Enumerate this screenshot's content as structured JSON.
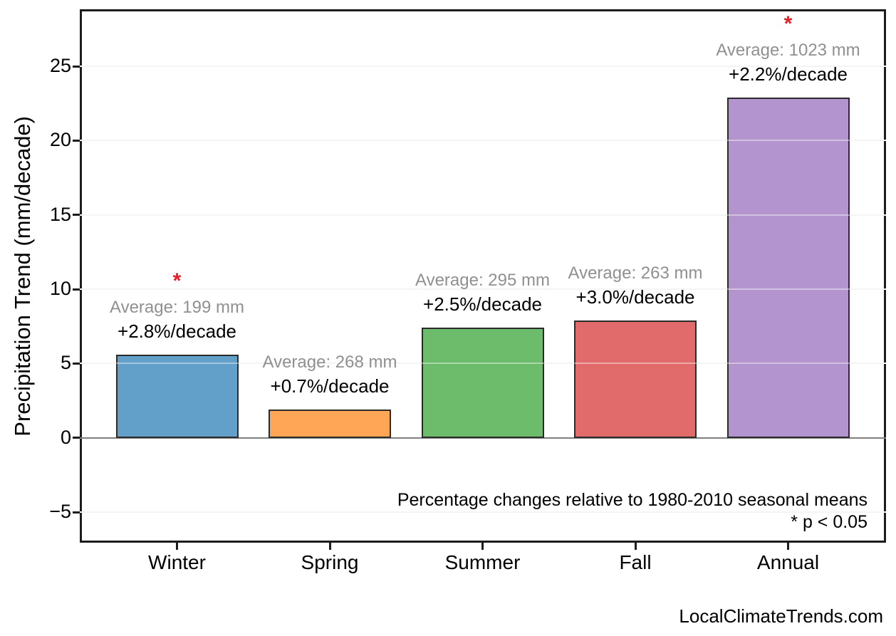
{
  "chart_data": {
    "type": "bar",
    "title": "",
    "xlabel": "",
    "ylabel": "Precipitation Trend (mm/decade)",
    "categories": [
      "Winter",
      "Spring",
      "Summer",
      "Fall",
      "Annual"
    ],
    "values": [
      5.6,
      1.9,
      7.4,
      7.9,
      22.9
    ],
    "value_unit": "mm/decade",
    "ylim": [
      -7.06,
      28.84
    ],
    "yticks": [
      25,
      20,
      15,
      10,
      5,
      0,
      -5
    ],
    "grid": true,
    "legend": "none",
    "zero_line_color": "#7f7f7f",
    "bar_edge_color": "#2b2b2b",
    "average_label_color": "#909090",
    "significance_marker": "*",
    "significance_color": "#ec1c24",
    "bars": [
      {
        "category": "Winter",
        "value": 5.6,
        "color": "#62a0ca",
        "average_label": "Average: 199 mm",
        "pct_label": "+2.8%/decade",
        "significant": true
      },
      {
        "category": "Spring",
        "value": 1.9,
        "color": "#ffa556",
        "average_label": "Average: 268 mm",
        "pct_label": "+0.7%/decade",
        "significant": false
      },
      {
        "category": "Summer",
        "value": 7.4,
        "color": "#6cbc6c",
        "average_label": "Average: 295 mm",
        "pct_label": "+2.5%/decade",
        "significant": false
      },
      {
        "category": "Fall",
        "value": 7.9,
        "color": "#e16a6a",
        "average_label": "Average: 263 mm",
        "pct_label": "+3.0%/decade",
        "significant": false
      },
      {
        "category": "Annual",
        "value": 22.9,
        "color": "#b394ce",
        "average_label": "Average: 1023 mm",
        "pct_label": "+2.2%/decade",
        "significant": true
      }
    ],
    "notes": [
      "Percentage changes relative to 1980-2010 seasonal means",
      "* p < 0.05"
    ]
  },
  "footer": {
    "text": "LocalClimateTrends.com"
  }
}
